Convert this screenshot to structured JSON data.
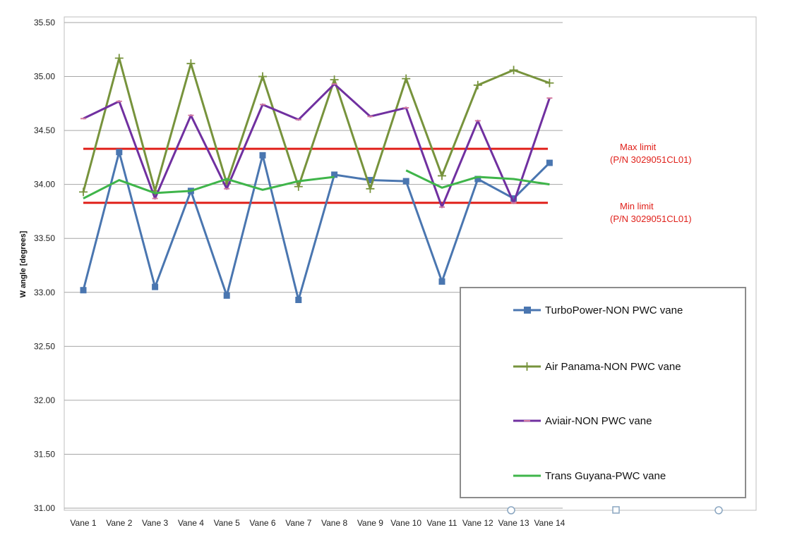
{
  "chart_data": {
    "type": "line",
    "title": "",
    "xlabel": "",
    "ylabel": "W angle [degrees]",
    "ylim": [
      31.0,
      35.5
    ],
    "yticks": [
      31.0,
      31.5,
      32.0,
      32.5,
      33.0,
      33.5,
      34.0,
      34.5,
      35.0,
      35.5
    ],
    "ytick_labels": [
      "31.00",
      "31.50",
      "32.00",
      "32.50",
      "33.00",
      "33.50",
      "34.00",
      "34.50",
      "35.00",
      "35.50"
    ],
    "grid": "horizontal",
    "legend_position": "bottom-right",
    "categories": [
      "Vane 1",
      "Vane 2",
      "Vane 3",
      "Vane 4",
      "Vane 5",
      "Vane 6",
      "Vane 7",
      "Vane 8",
      "Vane 9",
      "Vane 10",
      "Vane 11",
      "Vane 12",
      "Vane 13",
      "Vane 14"
    ],
    "series": [
      {
        "name": "TurboPower-NON PWC vane",
        "color": "#4a76b0",
        "marker": "square",
        "values": [
          33.02,
          34.3,
          33.05,
          33.94,
          32.97,
          34.27,
          32.93,
          34.09,
          34.04,
          34.03,
          33.1,
          34.05,
          33.87,
          34.2
        ]
      },
      {
        "name": "Air Panama-NON PWC vane",
        "color": "#77933c",
        "marker": "plus",
        "values": [
          33.93,
          35.17,
          33.94,
          35.12,
          34.01,
          35.0,
          33.98,
          34.97,
          33.96,
          34.98,
          34.08,
          34.92,
          35.06,
          34.94
        ]
      },
      {
        "name": "Aviair-NON PWC vane",
        "color": "#7030a0",
        "marker": "dash",
        "values": [
          34.61,
          34.77,
          33.87,
          34.64,
          33.96,
          34.74,
          34.6,
          34.93,
          34.63,
          34.71,
          33.79,
          34.59,
          33.83,
          34.8
        ]
      },
      {
        "name": "Trans Guyana-PWC vane",
        "color": "#3fb54a",
        "marker": "none",
        "values": [
          33.87,
          34.04,
          33.92,
          33.94,
          34.05,
          33.95,
          34.03,
          34.07,
          null,
          34.13,
          33.97,
          34.07,
          34.05,
          34.0
        ]
      }
    ],
    "reference_lines": [
      {
        "value": 34.33,
        "color": "#e0201a",
        "label_line1": "Max limit",
        "label_line2": "(P/N 3029051CL01)"
      },
      {
        "value": 33.83,
        "color": "#e0201a",
        "label_line1": "Min limit",
        "label_line2": "(P/N 3029051CL01)"
      }
    ]
  }
}
